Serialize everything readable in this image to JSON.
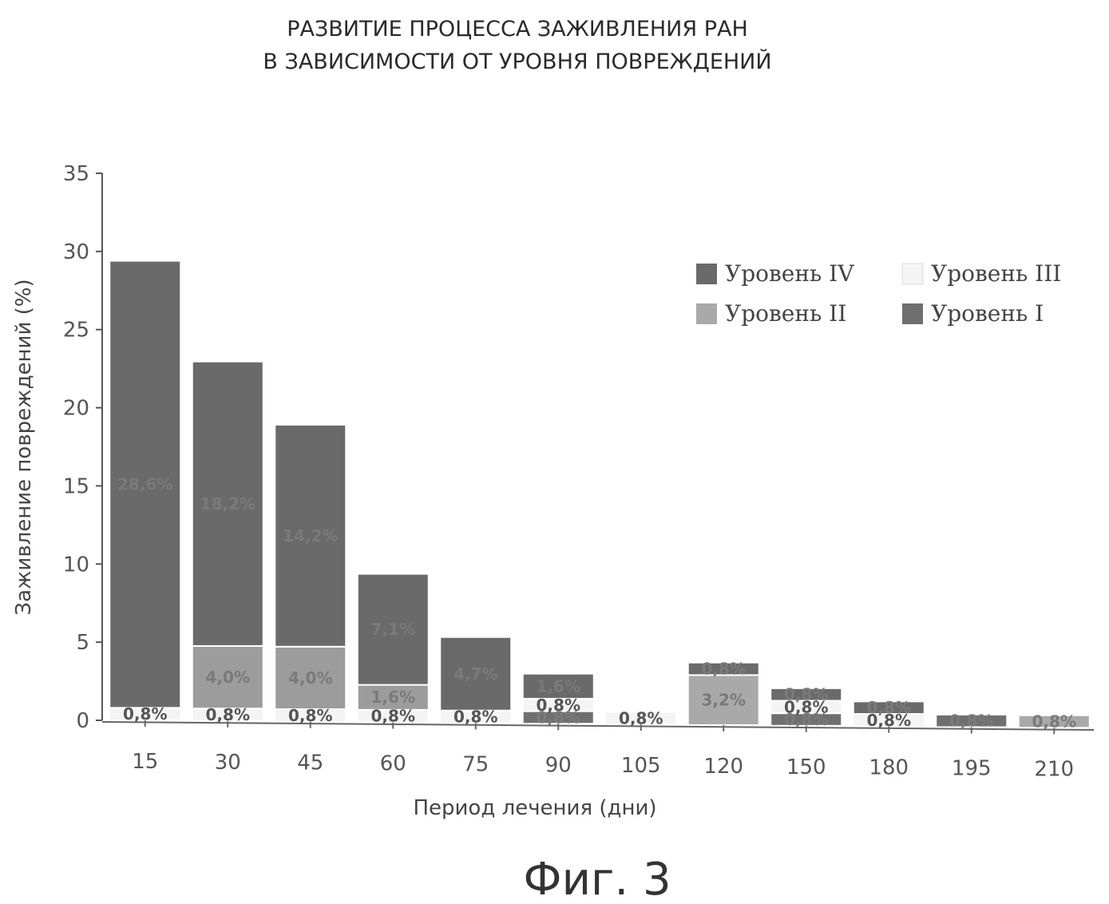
{
  "chart_data": {
    "type": "bar",
    "stacked": true,
    "title": [
      "РАЗВИТИЕ ПРОЦЕССА ЗАЖИВЛЕНИЯ РАН",
      "В ЗАВИСИМОСТИ ОТ УРОВНЯ ПОВРЕЖДЕНИЙ"
    ],
    "xlabel": "Период лечения (дни)",
    "ylabel": "Заживление повреждений (%)",
    "ylim": [
      0,
      35
    ],
    "yticks": [
      0,
      5,
      10,
      15,
      20,
      25,
      30,
      35
    ],
    "categories": [
      "15",
      "30",
      "45",
      "60",
      "75",
      "90",
      "105",
      "120",
      "150",
      "180",
      "195",
      "210"
    ],
    "legend_position": "top-right",
    "legend_order": [
      3,
      2,
      1,
      0
    ],
    "series": [
      {
        "name": "Уровень I",
        "color": "#6f6f6f",
        "values": [
          0,
          0,
          0,
          0,
          0,
          0.8,
          0,
          0,
          0.8,
          0,
          0.8,
          0
        ],
        "labels": [
          "",
          "",
          "",
          "",
          "",
          "0,8%",
          "",
          "",
          "0,8%",
          "",
          "0,8%",
          ""
        ]
      },
      {
        "name": "Уровень II",
        "color": "#a9a9a9",
        "values": [
          0,
          0,
          0,
          0,
          0,
          0,
          0,
          3.2,
          0,
          0,
          0,
          0.8
        ],
        "labels": [
          "",
          "",
          "",
          "",
          "",
          "",
          "",
          "3,2%",
          "",
          "",
          "",
          "0,8%"
        ]
      },
      {
        "name": "Уровень III",
        "color": "#f4f4f4",
        "values": [
          0.8,
          0.8,
          0.8,
          0.8,
          0.8,
          0.8,
          0.8,
          0,
          0.8,
          0.8,
          0,
          0
        ],
        "labels": [
          "0,8%",
          "0,8%",
          "0,8%",
          "0,8%",
          "0,8%",
          "0,8%",
          "0,8%",
          "",
          "0,8%",
          "0,8%",
          "",
          ""
        ]
      },
      {
        "name": "Уровень IV",
        "color": "#6a6a6a",
        "values": [
          28.6,
          18.2,
          14.2,
          7.1,
          4.7,
          1.6,
          0,
          0.8,
          0.8,
          0.8,
          0,
          0
        ],
        "labels": [
          "28,6%",
          "18,2%",
          "14,2%",
          "7,1%",
          "4,7%",
          "1,6%",
          "",
          "0,8%",
          "0,8%",
          "0,8%",
          "",
          ""
        ]
      },
      {
        "name": "",
        "color": "#9c9c9c",
        "values": [
          0,
          4.0,
          4.0,
          1.6,
          0,
          0,
          0,
          0,
          0,
          0,
          0,
          0
        ],
        "labels": [
          "",
          "4,0%",
          "4,0%",
          "1,6%",
          "",
          "",
          "",
          "",
          "",
          "",
          "",
          ""
        ]
      }
    ],
    "stack_order": [
      0,
      1,
      2,
      4,
      3
    ]
  },
  "caption": "Фиг. 3"
}
